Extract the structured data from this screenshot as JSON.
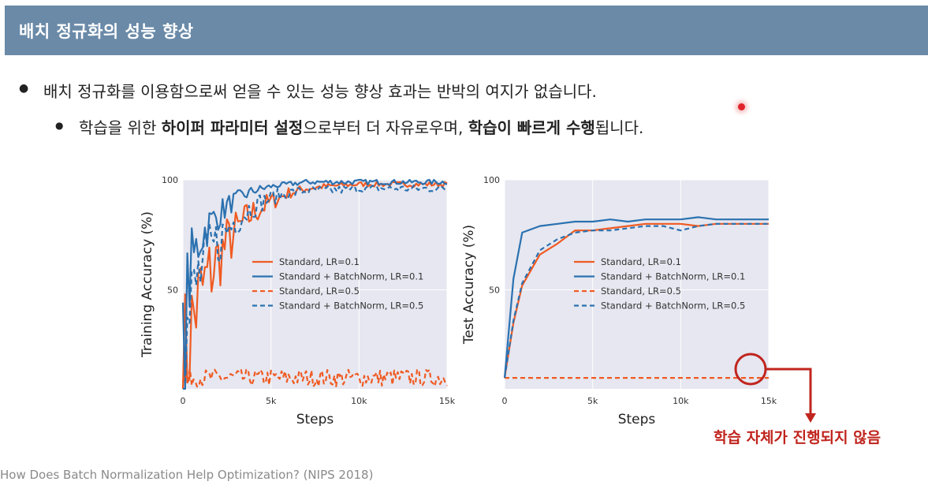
{
  "header": {
    "title": "배치 정규화의 성능 향상"
  },
  "bullets": {
    "b1": "배치 정규화를 이용함으로써 얻을 수 있는 성능 향상 효과는 반박의 여지가 없습니다.",
    "b2": {
      "p1": "학습을 위한 ",
      "p2": "하이퍼 파라미터 설정",
      "p3": "으로부터 더 자유로우며, ",
      "p4": "학습이 빠르게 수행",
      "p5": "됩니다."
    }
  },
  "reference": "How Does Batch Normalization Help Optimization? (NIPS 2018)",
  "annotation": "학습 자체가 진행되지 않음",
  "colors": {
    "header_bg": "#6a8aa8",
    "standard": "#f05a22",
    "batchnorm": "#2b71b0",
    "plot_bg": "#e6e7f0",
    "annotation": "#c0251e"
  },
  "chart_data": [
    {
      "type": "line",
      "ylabel": "Training Accuracy (%)",
      "xlabel": "Steps",
      "xlim": [
        0,
        15000
      ],
      "ylim": [
        5,
        100
      ],
      "xticks": [
        "0",
        "5k",
        "10k",
        "15k"
      ],
      "yticks": [
        "50",
        "100"
      ],
      "legend_placement": "center-right",
      "series": [
        {
          "name": "Standard, LR=0.1",
          "style": "solid",
          "color": "#f05a22",
          "x": [
            0,
            300,
            600,
            1000,
            1500,
            2000,
            2500,
            3000,
            3500,
            4000,
            5000,
            6000,
            7000,
            8000,
            10000,
            12000,
            15000
          ],
          "y": [
            10,
            25,
            38,
            48,
            57,
            64,
            71,
            76,
            81,
            85,
            90,
            94,
            96,
            97,
            98,
            98,
            98
          ]
        },
        {
          "name": "Standard + BatchNorm, LR=0.1",
          "style": "solid",
          "color": "#2b71b0",
          "x": [
            0,
            200,
            500,
            1000,
            1500,
            2000,
            2500,
            3000,
            3500,
            4000,
            5000,
            6000,
            7000,
            8000,
            10000,
            12000,
            15000
          ],
          "y": [
            10,
            45,
            62,
            74,
            80,
            84,
            88,
            91,
            93,
            95,
            97,
            98,
            99,
            99,
            99,
            99,
            99
          ]
        },
        {
          "name": "Standard, LR=0.5",
          "style": "dashed",
          "color": "#f05a22",
          "x": [
            0,
            15000
          ],
          "y": [
            10,
            10
          ]
        },
        {
          "name": "Standard + BatchNorm, LR=0.5",
          "style": "dashed",
          "color": "#2b71b0",
          "x": [
            0,
            300,
            600,
            1000,
            1500,
            2000,
            2500,
            3000,
            3500,
            4000,
            5000,
            6000,
            7000,
            8000,
            10000,
            12000,
            15000
          ],
          "y": [
            10,
            33,
            48,
            58,
            66,
            72,
            77,
            82,
            85,
            88,
            92,
            94,
            95,
            95,
            96,
            96,
            96
          ]
        }
      ]
    },
    {
      "type": "line",
      "ylabel": "Test Accuracy (%)",
      "xlabel": "Steps",
      "xlim": [
        0,
        15000
      ],
      "ylim": [
        5,
        100
      ],
      "xticks": [
        "0",
        "5k",
        "10k",
        "15k"
      ],
      "yticks": [
        "50",
        "100"
      ],
      "legend_placement": "center-right",
      "series": [
        {
          "name": "Standard, LR=0.1",
          "style": "solid",
          "color": "#f05a22",
          "x": [
            0,
            500,
            1000,
            2000,
            3000,
            4000,
            5000,
            6000,
            7000,
            8000,
            9000,
            10000,
            11000,
            12000,
            13000,
            14000,
            15000
          ],
          "y": [
            10,
            35,
            52,
            66,
            71,
            77,
            77,
            78,
            79,
            80,
            80,
            80,
            79,
            80,
            80,
            80,
            80
          ]
        },
        {
          "name": "Standard + BatchNorm, LR=0.1",
          "style": "solid",
          "color": "#2b71b0",
          "x": [
            0,
            500,
            1000,
            2000,
            3000,
            4000,
            5000,
            6000,
            7000,
            8000,
            9000,
            10000,
            11000,
            12000,
            13000,
            14000,
            15000
          ],
          "y": [
            10,
            55,
            76,
            79,
            80,
            81,
            81,
            82,
            81,
            82,
            82,
            82,
            83,
            82,
            82,
            82,
            82
          ]
        },
        {
          "name": "Standard, LR=0.5",
          "style": "dashed",
          "color": "#f05a22",
          "x": [
            0,
            15000
          ],
          "y": [
            10,
            10
          ]
        },
        {
          "name": "Standard + BatchNorm, LR=0.5",
          "style": "dashed",
          "color": "#2b71b0",
          "x": [
            0,
            500,
            1000,
            2000,
            3000,
            4000,
            5000,
            6000,
            7000,
            8000,
            9000,
            10000,
            11000,
            12000,
            13000,
            14000,
            15000
          ],
          "y": [
            10,
            36,
            53,
            68,
            73,
            76,
            77,
            77,
            78,
            79,
            79,
            77,
            79,
            80,
            80,
            80,
            80
          ]
        }
      ]
    }
  ]
}
